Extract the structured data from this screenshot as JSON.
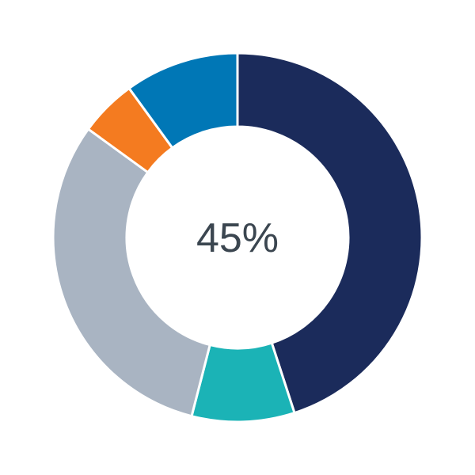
{
  "chart_data": {
    "type": "pie",
    "variant": "donut",
    "center_label": "45%",
    "start": "top",
    "direction": "clockwise",
    "slices": [
      {
        "value": 45,
        "color": "#1b2b5b"
      },
      {
        "value": 9,
        "color": "#1bb3b6"
      },
      {
        "value": 31,
        "color": "#a9b4c2"
      },
      {
        "value": 5,
        "color": "#f47b20"
      },
      {
        "value": 10,
        "color": "#0077b6"
      }
    ],
    "legend": "none"
  }
}
